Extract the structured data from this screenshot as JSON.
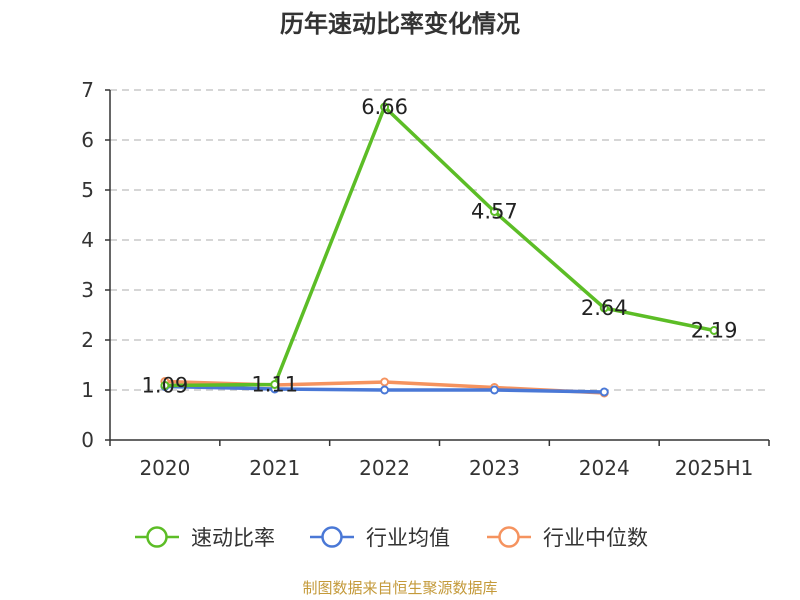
{
  "title": "历年速动比率变化情况",
  "source": "制图数据来自恒生聚源数据库",
  "colors": {
    "speed": "#5cbd26",
    "avg": "#4a78d6",
    "median": "#f5935f",
    "grid": "#c8c8c8",
    "axis": "#333333",
    "source": "#c49a3a"
  },
  "chart_data": {
    "type": "line",
    "title": "历年速动比率变化情况",
    "xlabel": "",
    "ylabel": "",
    "categories": [
      "2020",
      "2021",
      "2022",
      "2023",
      "2024",
      "2025H1"
    ],
    "ylim": [
      0,
      7
    ],
    "yticks": [
      0,
      1,
      2,
      3,
      4,
      5,
      6,
      7
    ],
    "grid": true,
    "legend_position": "bottom",
    "series": [
      {
        "name": "速动比率",
        "color": "#5cbd26",
        "values": [
          1.09,
          1.11,
          6.66,
          4.57,
          2.64,
          2.19
        ],
        "labels": [
          "1.09",
          "1.11",
          "6.66",
          "4.57",
          "2.64",
          "2.19"
        ]
      },
      {
        "name": "行业均值",
        "color": "#4a78d6",
        "values": [
          1.07,
          1.02,
          1.0,
          1.0,
          0.96,
          null
        ]
      },
      {
        "name": "行业中位数",
        "color": "#f5935f",
        "values": [
          1.17,
          1.1,
          1.16,
          1.05,
          0.94,
          null
        ]
      }
    ]
  }
}
